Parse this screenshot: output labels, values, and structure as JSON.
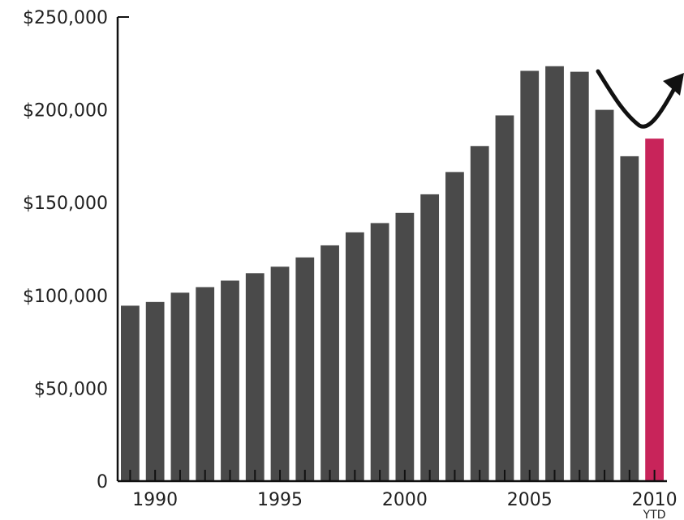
{
  "chart_data": {
    "type": "bar",
    "title": "",
    "xlabel": "",
    "ylabel": "",
    "ylim": [
      0,
      250000
    ],
    "y_ticks": [
      0,
      50000,
      100000,
      150000,
      200000,
      250000
    ],
    "y_tick_labels": [
      "0",
      "$50,000",
      "$100,000",
      "$150,000",
      "$200,000",
      "$250,000"
    ],
    "categories": [
      "1989",
      "1990",
      "1991",
      "1992",
      "1993",
      "1994",
      "1995",
      "1996",
      "1997",
      "1998",
      "1999",
      "2000",
      "2001",
      "2002",
      "2003",
      "2004",
      "2005",
      "2006",
      "2007",
      "2008",
      "2009",
      "2010"
    ],
    "values": [
      94500,
      96500,
      101500,
      104500,
      108000,
      112000,
      115500,
      120500,
      127000,
      134000,
      139000,
      144500,
      154500,
      166500,
      180500,
      197000,
      221000,
      223500,
      220500,
      200000,
      175000,
      184500
    ],
    "x_tick_labels": [
      {
        "category": "1990",
        "label": "1990"
      },
      {
        "category": "1995",
        "label": "1995"
      },
      {
        "category": "2000",
        "label": "2000"
      },
      {
        "category": "2005",
        "label": "2005"
      },
      {
        "category": "2010",
        "label": "2010",
        "sublabel": "YTD"
      }
    ],
    "grid": false,
    "legend": "none",
    "annotations": [
      {
        "type": "arrow",
        "description": "curved up-trend arrow after dip"
      }
    ],
    "colors": {
      "bar": "#4a4a4a",
      "highlight_bar": "#c8245a",
      "axis": "#111111",
      "arrow": "#111111"
    },
    "highlight_category": "2010"
  }
}
